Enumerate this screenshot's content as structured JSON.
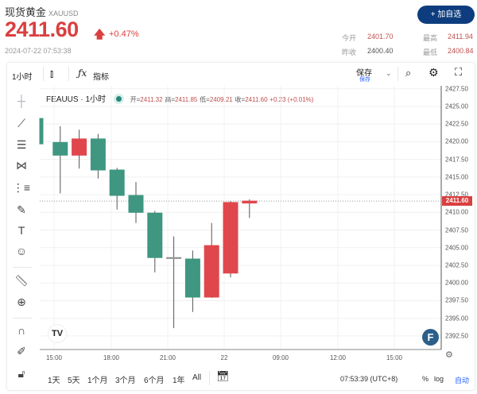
{
  "header": {
    "name": "现货黄金",
    "symbol": "XAUUSD",
    "price": "2411.60",
    "change": "+0.47%",
    "timestamp": "2024-07-22 07:53:38",
    "add_button": "+ 加自选",
    "stats": [
      {
        "label": "今开",
        "value": "2401.70"
      },
      {
        "label": "最高",
        "value": "2411.94"
      },
      {
        "label": "昨收",
        "value": "2400.40"
      },
      {
        "label": "最低",
        "value": "2400.84"
      }
    ]
  },
  "toolbar": {
    "interval": "1小时",
    "indicators": "指标",
    "save": "保存",
    "save_sub": "保存"
  },
  "legend": {
    "symbol": "FEAUUS · 1小时",
    "open_k": "开=",
    "open": "2411.32",
    "high_k": "高=",
    "high": "2411.85",
    "low_k": "低=",
    "low": "2409.21",
    "close_k": "收=",
    "close": "2411.60",
    "change": "+0.23 (+0.01%)"
  },
  "colors": {
    "up": "#e0474c",
    "down": "#3f9781",
    "accent": "#0d3d7e",
    "last_price": "#d9403f"
  },
  "left_tools": [
    "crosshair-icon",
    "trend-line-icon",
    "fib-lines-icon",
    "pattern-icon",
    "projection-icon",
    "brush-icon",
    "text-icon",
    "emoji-icon",
    "ruler-icon",
    "zoom-in-icon",
    "magnet-icon",
    "lock-drawing-icon",
    "unlock-icon"
  ],
  "chart_data": {
    "type": "candlestick",
    "ylim": [
      2391,
      2428
    ],
    "grid": true,
    "y_ticks": [
      "2427.50",
      "2425.00",
      "2422.50",
      "2420.00",
      "2417.50",
      "2415.00",
      "2412.50",
      "2410.00",
      "2407.50",
      "2405.00",
      "2402.50",
      "2400.00",
      "2397.50",
      "2395.00",
      "2392.50"
    ],
    "x_ticks": [
      "15:00",
      "18:00",
      "21:00",
      "22",
      "09:00",
      "12:00",
      "15:00"
    ],
    "last_price": "2411.60",
    "candles": [
      {
        "o": 2423.3,
        "h": 2423.3,
        "l": 2419.7,
        "c": 2419.7
      },
      {
        "o": 2419.9,
        "h": 2422.2,
        "l": 2412.7,
        "c": 2418.1
      },
      {
        "o": 2418.1,
        "h": 2421.7,
        "l": 2416.2,
        "c": 2420.4
      },
      {
        "o": 2420.4,
        "h": 2421.1,
        "l": 2414.8,
        "c": 2416.0
      },
      {
        "o": 2416.0,
        "h": 2416.3,
        "l": 2410.4,
        "c": 2412.4
      },
      {
        "o": 2412.4,
        "h": 2414.3,
        "l": 2408.5,
        "c": 2410.0
      },
      {
        "o": 2409.9,
        "h": 2410.2,
        "l": 2401.5,
        "c": 2403.6
      },
      {
        "o": 2403.6,
        "h": 2406.6,
        "l": 2393.6,
        "c": 2403.6
      },
      {
        "o": 2403.4,
        "h": 2404.6,
        "l": 2395.9,
        "c": 2398.0
      },
      {
        "o": 2398.0,
        "h": 2408.5,
        "l": 2397.9,
        "c": 2405.3
      },
      {
        "o": 2401.4,
        "h": 2411.6,
        "l": 2400.8,
        "c": 2411.4
      },
      {
        "o": 2411.32,
        "h": 2411.85,
        "l": 2409.21,
        "c": 2411.6
      }
    ]
  },
  "footer": {
    "ranges": [
      "1天",
      "5天",
      "1个月",
      "3个月",
      "6个月",
      "1年",
      "All"
    ],
    "time": "07:53:39 (UTC+8)",
    "percent": "%",
    "log": "log",
    "auto": "自动"
  }
}
